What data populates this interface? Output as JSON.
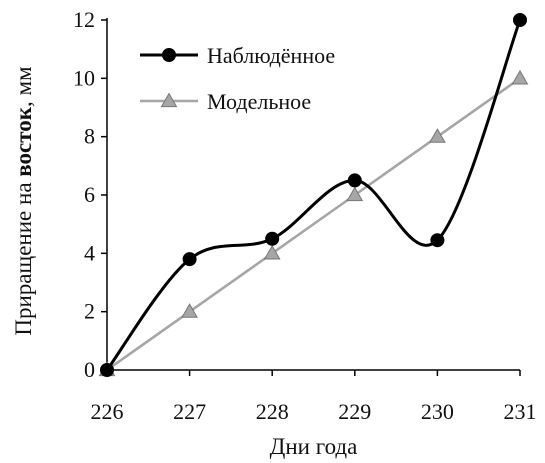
{
  "chart_data": {
    "type": "line",
    "xlabel": "Дни года",
    "ylabel": {
      "prefix": "Приращение на ",
      "bold": "восток",
      "suffix": ", мм"
    },
    "x": [
      226,
      227,
      228,
      229,
      230,
      231
    ],
    "xlim": [
      226,
      231
    ],
    "ylim": [
      0,
      12
    ],
    "xticks": [
      "226",
      "227",
      "228",
      "229",
      "230",
      "231"
    ],
    "yticks": [
      "0",
      "2",
      "4",
      "6",
      "8",
      "10",
      "12"
    ],
    "grid": false,
    "legend_position": "top-left",
    "series": [
      {
        "name": "Наблюдённое",
        "values": [
          0,
          3.8,
          4.5,
          6.5,
          4.45,
          12
        ],
        "smooth": true,
        "marker": "circle",
        "color": "#000000"
      },
      {
        "name": "Модельное",
        "values": [
          0,
          2,
          4,
          6,
          8,
          10
        ],
        "smooth": false,
        "marker": "triangle",
        "color": "#a6a6a6"
      }
    ]
  }
}
